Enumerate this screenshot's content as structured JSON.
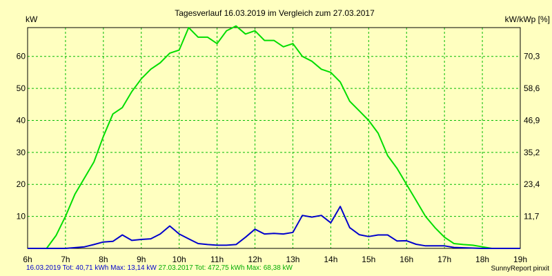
{
  "chart_data": {
    "type": "line",
    "title": "Tagesverlauf 16.03.2019 im Vergleich zum 27.03.2017",
    "ylabel_left": "kW",
    "ylabel_right": "kW/kWp [%]",
    "x_ticks": [
      "6h",
      "7h",
      "8h",
      "9h",
      "10h",
      "11h",
      "12h",
      "13h",
      "14h",
      "15h",
      "16h",
      "17h",
      "18h",
      "19h"
    ],
    "y_ticks_left": [
      "10",
      "20",
      "30",
      "40",
      "50",
      "60"
    ],
    "y_ticks_right": [
      "11,7",
      "23,4",
      "35,2",
      "46,9",
      "58,6",
      "70,3"
    ],
    "xlim": [
      6,
      19
    ],
    "ylim": [
      0,
      69
    ],
    "grid": true,
    "series": [
      {
        "name": "27.03.2017",
        "color": "#00dd00",
        "points": [
          [
            6.0,
            0
          ],
          [
            6.5,
            0
          ],
          [
            6.75,
            4
          ],
          [
            7.0,
            10
          ],
          [
            7.25,
            17
          ],
          [
            7.5,
            22
          ],
          [
            7.75,
            27
          ],
          [
            8.0,
            35
          ],
          [
            8.25,
            42
          ],
          [
            8.5,
            44
          ],
          [
            8.75,
            49
          ],
          [
            9.0,
            53
          ],
          [
            9.25,
            56
          ],
          [
            9.5,
            58
          ],
          [
            9.75,
            61
          ],
          [
            10.0,
            62
          ],
          [
            10.25,
            69
          ],
          [
            10.5,
            66
          ],
          [
            10.75,
            66
          ],
          [
            11.0,
            64
          ],
          [
            11.25,
            68
          ],
          [
            11.5,
            69.5
          ],
          [
            11.75,
            67
          ],
          [
            12.0,
            68
          ],
          [
            12.25,
            65
          ],
          [
            12.5,
            65
          ],
          [
            12.75,
            63
          ],
          [
            13.0,
            64
          ],
          [
            13.25,
            60
          ],
          [
            13.5,
            58.5
          ],
          [
            13.75,
            56
          ],
          [
            14.0,
            55
          ],
          [
            14.25,
            52
          ],
          [
            14.5,
            46
          ],
          [
            14.75,
            43
          ],
          [
            15.0,
            40
          ],
          [
            15.25,
            36
          ],
          [
            15.5,
            29
          ],
          [
            15.75,
            25
          ],
          [
            16.0,
            20
          ],
          [
            16.25,
            15
          ],
          [
            16.5,
            10
          ],
          [
            16.75,
            6.5
          ],
          [
            17.0,
            3.5
          ],
          [
            17.25,
            1.5
          ],
          [
            17.5,
            1.2
          ],
          [
            17.75,
            1
          ],
          [
            18.0,
            0.5
          ],
          [
            18.25,
            0
          ],
          [
            19.0,
            0
          ]
        ]
      },
      {
        "name": "16.03.2019",
        "color": "#0000cc",
        "points": [
          [
            6.0,
            0
          ],
          [
            7.0,
            0
          ],
          [
            7.5,
            0.5
          ],
          [
            7.75,
            1.2
          ],
          [
            8.0,
            2
          ],
          [
            8.25,
            2.2
          ],
          [
            8.5,
            4.2
          ],
          [
            8.75,
            2.5
          ],
          [
            9.0,
            2.8
          ],
          [
            9.25,
            3
          ],
          [
            9.5,
            4.5
          ],
          [
            9.75,
            7
          ],
          [
            10.0,
            4.5
          ],
          [
            10.25,
            3
          ],
          [
            10.5,
            1.5
          ],
          [
            10.75,
            1.2
          ],
          [
            11.0,
            1
          ],
          [
            11.25,
            1
          ],
          [
            11.5,
            1.2
          ],
          [
            11.75,
            3.5
          ],
          [
            12.0,
            6
          ],
          [
            12.25,
            4.5
          ],
          [
            12.5,
            4.7
          ],
          [
            12.75,
            4.5
          ],
          [
            13.0,
            5
          ],
          [
            13.25,
            10.3
          ],
          [
            13.5,
            9.8
          ],
          [
            13.75,
            10.3
          ],
          [
            14.0,
            8
          ],
          [
            14.25,
            13.1
          ],
          [
            14.5,
            6.5
          ],
          [
            14.75,
            4.3
          ],
          [
            15.0,
            3.7
          ],
          [
            15.25,
            4.2
          ],
          [
            15.5,
            4.2
          ],
          [
            15.75,
            2.3
          ],
          [
            16.0,
            2.4
          ],
          [
            16.25,
            1.3
          ],
          [
            16.5,
            0.8
          ],
          [
            16.75,
            0.8
          ],
          [
            17.0,
            0.8
          ],
          [
            17.25,
            0.3
          ],
          [
            18.0,
            0
          ],
          [
            19.0,
            0
          ]
        ]
      }
    ]
  },
  "footer": {
    "series2019": "16.03.2019 Tot: 40,71 kWh Max: 13,14 kW",
    "series2017": "27.03.2017 Tot: 472,75 kWh Max: 68,38 kW",
    "color2019": "#0000cc",
    "color2017": "#00aa00",
    "credit": "SunnyReport pinxit"
  }
}
